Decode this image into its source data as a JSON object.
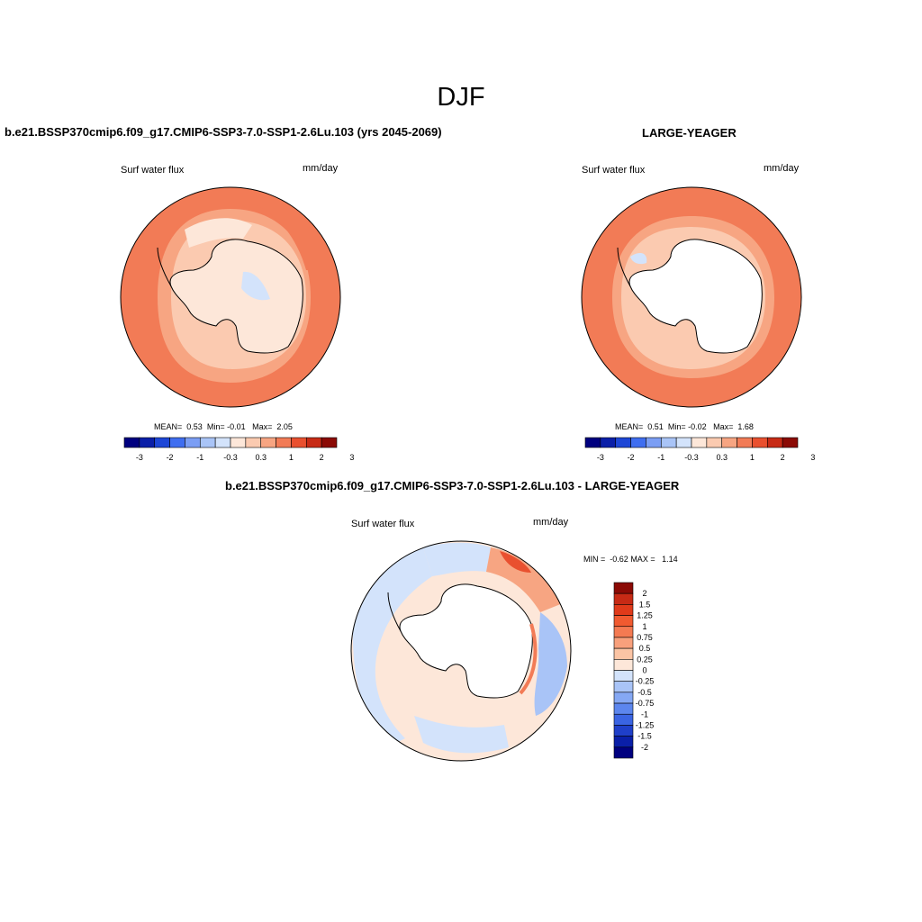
{
  "title": "DJF",
  "panels": [
    {
      "title": "b.e21.BSSP370cmip6.f09_g17.CMIP6-SSP3-7.0-SSP1-2.6Lu.103 (yrs 2045-2069)",
      "variable": "Surf water flux",
      "units": "mm/day",
      "stats": {
        "mean_label": "MEAN=",
        "mean": "0.53",
        "min_label": "Min=",
        "min": "-0.01",
        "max_label": "Max=",
        "max": "2.05"
      },
      "colorbar_labels": [
        "-3",
        "-2",
        "-1",
        "-0.3",
        "0.3",
        "1",
        "2",
        "3"
      ]
    },
    {
      "title": "LARGE-YEAGER",
      "variable": "Surf water flux",
      "units": "mm/day",
      "stats": {
        "mean_label": "MEAN=",
        "mean": "0.51",
        "min_label": "Min=",
        "min": "-0.02",
        "max_label": "Max=",
        "max": "1.68"
      },
      "colorbar_labels": [
        "-3",
        "-2",
        "-1",
        "-0.3",
        "0.3",
        "1",
        "2",
        "3"
      ]
    },
    {
      "title": "b.e21.BSSP370cmip6.f09_g17.CMIP6-SSP3-7.0-SSP1-2.6Lu.103 - LARGE-YEAGER",
      "variable": "Surf water flux",
      "units": "mm/day",
      "minmax": {
        "min_label": "MIN =",
        "min": "-0.62",
        "max_label": "MAX =",
        "max": "1.14"
      },
      "colorbar_labels": [
        "2",
        "1.5",
        "1.25",
        "1",
        "0.75",
        "0.5",
        "0.25",
        "0",
        "-0.25",
        "-0.5",
        "-0.75",
        "-1",
        "-1.25",
        "-1.5",
        "-2"
      ]
    }
  ],
  "colors": {
    "abs_scale": [
      "#00007f",
      "#0a1fa8",
      "#1d46d6",
      "#3f6ef0",
      "#7b9ef4",
      "#a9c4f7",
      "#d3e3fb",
      "#fde7d9",
      "#fbcab0",
      "#f7a582",
      "#f27b56",
      "#e9502f",
      "#c72a15",
      "#8b0a05"
    ],
    "diff_scale": [
      "#8b0a05",
      "#c72a15",
      "#e03a1a",
      "#f05a30",
      "#f47a52",
      "#f8a07c",
      "#fbc4a4",
      "#fde7d9",
      "#d3e3fb",
      "#a9c4f7",
      "#85a8f4",
      "#5c86ee",
      "#3a64e3",
      "#1f3fc9",
      "#0a1fa8",
      "#00007f"
    ]
  }
}
